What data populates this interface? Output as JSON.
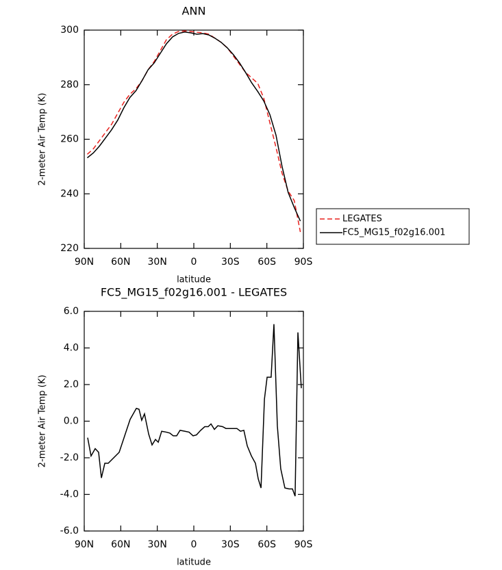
{
  "chart_data": [
    {
      "type": "line",
      "title": "ANN",
      "xlabel": "latitude",
      "ylabel": "2-meter Air Temp (K)",
      "x": [
        87.5,
        82.5,
        77.5,
        72.5,
        67.5,
        62.5,
        57.5,
        52.5,
        47.5,
        42.5,
        37.5,
        32.5,
        27.5,
        22.5,
        17.5,
        12.5,
        7.5,
        2.5,
        -2.5,
        -7.5,
        -12.5,
        -17.5,
        -22.5,
        -27.5,
        -32.5,
        -37.5,
        -42.5,
        -47.5,
        -52.5,
        -57.5,
        -62.5,
        -67.5,
        -72.5,
        -77.5,
        -82.5,
        -87.5
      ],
      "series": [
        {
          "name": "LEGATES",
          "color": "#e8201c",
          "style": "dashed",
          "values": [
            254.5,
            256.5,
            259.5,
            262.5,
            265.5,
            269.5,
            273.5,
            276.5,
            278.5,
            281.5,
            285.5,
            288.5,
            292.5,
            296.5,
            298.5,
            299.5,
            299.7,
            299.5,
            299.2,
            299.0,
            298.5,
            297.0,
            295.5,
            293.5,
            290.5,
            287.5,
            284.5,
            282.5,
            280.5,
            275.0,
            266.0,
            257.0,
            247.5,
            241.0,
            237.5,
            226.0
          ]
        },
        {
          "name": "FC5_MG15_f02g16.001",
          "color": "#000000",
          "style": "solid",
          "values": [
            253.2,
            255.0,
            257.5,
            260.5,
            263.5,
            267.0,
            271.5,
            275.3,
            277.8,
            281.5,
            285.5,
            288.0,
            291.5,
            295.0,
            297.5,
            298.8,
            299.3,
            299.0,
            298.5,
            298.7,
            298.2,
            297.0,
            295.5,
            293.5,
            291.0,
            288.0,
            284.5,
            280.7,
            277.5,
            274.0,
            269.0,
            261.5,
            250.0,
            240.5,
            235.0,
            230.0
          ]
        }
      ],
      "xlim": [
        90,
        -90
      ],
      "xticks": [
        {
          "value": 90,
          "label": "90N"
        },
        {
          "value": 60,
          "label": "60N"
        },
        {
          "value": 30,
          "label": "30N"
        },
        0,
        {
          "value": -30,
          "label": "30S"
        },
        {
          "value": -60,
          "label": "60S"
        },
        {
          "value": -90,
          "label": "90S"
        }
      ],
      "ylim": [
        220,
        300
      ],
      "yticks": [
        220,
        240,
        260,
        280,
        300
      ],
      "legend": "right"
    },
    {
      "type": "line",
      "title": "FC5_MG15_f02g16.001 - LEGATES",
      "xlabel": "latitude",
      "ylabel": "2-meter Air Temp (K)",
      "x": [
        87.2,
        84.4,
        81.0,
        78.2,
        75.9,
        73.1,
        70.3,
        65.8,
        61.3,
        57.3,
        52.3,
        47.2,
        45.0,
        42.8,
        40.5,
        37.1,
        34.3,
        31.5,
        29.2,
        26.4,
        22.5,
        19.7,
        16.9,
        14.1,
        11.3,
        7.3,
        3.9,
        0.6,
        -2.2,
        -5.6,
        -9.0,
        -11.8,
        -14.1,
        -16.9,
        -19.7,
        -23.6,
        -26.4,
        -29.8,
        -32.6,
        -35.4,
        -38.3,
        -41.1,
        -43.9,
        -47.3,
        -50.6,
        -52.9,
        -55.2,
        -58.0,
        -60.2,
        -63.5,
        -65.8,
        -68.6,
        -71.4,
        -74.8,
        -78.2,
        -81.0,
        -83.2,
        -85.5,
        -88.3
      ],
      "values": [
        -0.9,
        -1.9,
        -1.5,
        -1.7,
        -3.1,
        -2.3,
        -2.3,
        -2.0,
        -1.7,
        -0.9,
        0.1,
        0.7,
        0.65,
        0.05,
        0.4,
        -0.7,
        -1.3,
        -1.0,
        -1.15,
        -0.55,
        -0.6,
        -0.65,
        -0.8,
        -0.8,
        -0.5,
        -0.55,
        -0.6,
        -0.8,
        -0.75,
        -0.5,
        -0.3,
        -0.3,
        -0.15,
        -0.45,
        -0.25,
        -0.3,
        -0.4,
        -0.4,
        -0.4,
        -0.4,
        -0.55,
        -0.5,
        -1.35,
        -1.9,
        -2.3,
        -3.15,
        -3.65,
        1.2,
        2.4,
        2.4,
        5.3,
        -0.25,
        -2.6,
        -3.65,
        -3.7,
        -3.7,
        -4.1,
        4.85,
        1.8
      ],
      "color": "#000000",
      "xlim": [
        90,
        -90
      ],
      "xticks": [
        {
          "value": 90,
          "label": "90N"
        },
        {
          "value": 60,
          "label": "60N"
        },
        {
          "value": 30,
          "label": "30N"
        },
        0,
        {
          "value": -30,
          "label": "30S"
        },
        {
          "value": -60,
          "label": "60S"
        },
        {
          "value": -90,
          "label": "90S"
        }
      ],
      "ylim": [
        -6,
        6
      ],
      "yticks": [
        {
          "value": -6,
          "label": "-6.0"
        },
        {
          "value": -4,
          "label": "-4.0"
        },
        {
          "value": -2,
          "label": "-2.0"
        },
        {
          "value": 0,
          "label": "0.0"
        },
        {
          "value": 2,
          "label": "2.0"
        },
        {
          "value": 4,
          "label": "4.0"
        },
        {
          "value": 6,
          "label": "6.0"
        }
      ]
    }
  ]
}
